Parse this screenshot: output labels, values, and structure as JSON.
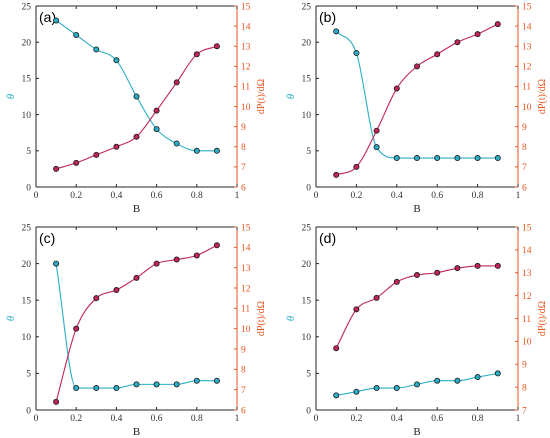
{
  "colors": {
    "left": "#2aaec6",
    "right": "#c0245a",
    "right_axis": "#e8541e"
  },
  "chart_data": [
    {
      "type": "line",
      "panel_label": "(a)",
      "xlabel": "B",
      "ylabel_left": "θ",
      "ylabel_right": "dP(t)/dΩ",
      "xlim": [
        0,
        1
      ],
      "ylim_left": [
        0,
        25
      ],
      "ylim_right": [
        6,
        15
      ],
      "xticks": [
        "0",
        "0.2",
        "0.4",
        "0.6",
        "0.8",
        "1"
      ],
      "yticks_left": [
        "0",
        "5",
        "10",
        "15",
        "20",
        "25"
      ],
      "yticks_right": [
        "6",
        "7",
        "8",
        "9",
        "10",
        "11",
        "12",
        "13",
        "14",
        "15"
      ],
      "x": [
        0.1,
        0.2,
        0.3,
        0.4,
        0.5,
        0.6,
        0.7,
        0.8,
        0.9
      ],
      "series": [
        {
          "axis": "left",
          "values": [
            23,
            21,
            19,
            17.5,
            12.5,
            8,
            6,
            5,
            5
          ]
        },
        {
          "axis": "right",
          "values": [
            6.9,
            7.2,
            7.6,
            8.0,
            8.5,
            9.8,
            11.2,
            12.6,
            13.0
          ]
        }
      ]
    },
    {
      "type": "line",
      "panel_label": "(b)",
      "xlabel": "B",
      "ylabel_left": "θ",
      "ylabel_right": "dP(t)/dΩ",
      "xlim": [
        0,
        1
      ],
      "ylim_left": [
        0,
        25
      ],
      "ylim_right": [
        6,
        15
      ],
      "xticks": [
        "0",
        "0.2",
        "0.4",
        "0.6",
        "0.8",
        "1"
      ],
      "yticks_left": [
        "0",
        "5",
        "10",
        "15",
        "20",
        "25"
      ],
      "yticks_right": [
        "6",
        "7",
        "8",
        "9",
        "10",
        "11",
        "12",
        "13",
        "14",
        "15"
      ],
      "x": [
        0.1,
        0.2,
        0.3,
        0.4,
        0.5,
        0.6,
        0.7,
        0.8,
        0.9
      ],
      "series": [
        {
          "axis": "left",
          "values": [
            21.5,
            18.5,
            5.5,
            4,
            4,
            4,
            4,
            4,
            4
          ]
        },
        {
          "axis": "right",
          "values": [
            6.6,
            7.0,
            8.8,
            10.9,
            12.0,
            12.6,
            13.2,
            13.6,
            14.1
          ]
        }
      ]
    },
    {
      "type": "line",
      "panel_label": "(c)",
      "xlabel": "B",
      "ylabel_left": "θ",
      "ylabel_right": "dP(t)/dΩ",
      "xlim": [
        0,
        1
      ],
      "ylim_left": [
        0,
        25
      ],
      "ylim_right": [
        6,
        15
      ],
      "xticks": [
        "0",
        "0.2",
        "0.4",
        "0.6",
        "0.8",
        "1"
      ],
      "yticks_left": [
        "0",
        "5",
        "10",
        "15",
        "20",
        "25"
      ],
      "yticks_right": [
        "6",
        "7",
        "8",
        "9",
        "10",
        "11",
        "12",
        "13",
        "14",
        "15"
      ],
      "x": [
        0.1,
        0.2,
        0.3,
        0.4,
        0.5,
        0.6,
        0.7,
        0.8,
        0.9
      ],
      "series": [
        {
          "axis": "left",
          "values": [
            20,
            3,
            3,
            3,
            3.5,
            3.5,
            3.5,
            4,
            4
          ]
        },
        {
          "axis": "right",
          "values": [
            6.4,
            10.0,
            11.5,
            11.9,
            12.5,
            13.2,
            13.4,
            13.6,
            14.1
          ]
        }
      ]
    },
    {
      "type": "line",
      "panel_label": "(d)",
      "xlabel": "B",
      "ylabel_left": "θ",
      "ylabel_right": "dP(t)/dΩ",
      "xlim": [
        0,
        1
      ],
      "ylim_left": [
        0,
        25
      ],
      "ylim_right": [
        7,
        15
      ],
      "xticks": [
        "0",
        "0.2",
        "0.4",
        "0.6",
        "0.8",
        "1"
      ],
      "yticks_left": [
        "0",
        "5",
        "10",
        "15",
        "20",
        "25"
      ],
      "yticks_right": [
        "7",
        "8",
        "9",
        "10",
        "11",
        "12",
        "13",
        "14",
        "15"
      ],
      "x": [
        0.1,
        0.2,
        0.3,
        0.4,
        0.5,
        0.6,
        0.7,
        0.8,
        0.9
      ],
      "series": [
        {
          "axis": "left",
          "values": [
            2,
            2.5,
            3,
            3,
            3.5,
            4,
            4,
            4.5,
            5
          ]
        },
        {
          "axis": "right",
          "values": [
            9.7,
            11.4,
            11.9,
            12.6,
            12.9,
            13.0,
            13.2,
            13.3,
            13.3
          ]
        }
      ]
    }
  ]
}
